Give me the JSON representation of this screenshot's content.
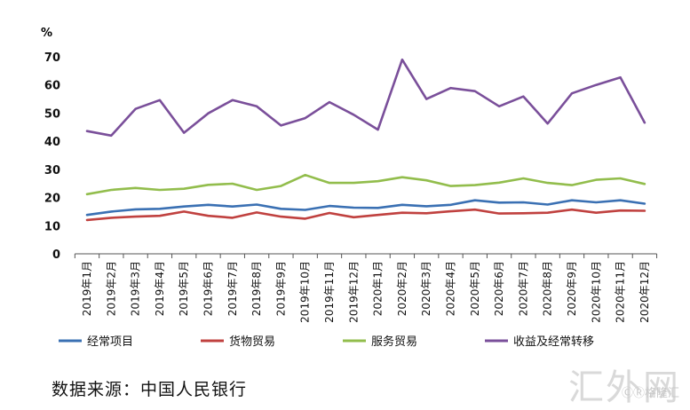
{
  "chart_data": {
    "type": "line",
    "ylabel": "%",
    "ylim": [
      0,
      70
    ],
    "yticks": [
      0,
      10,
      20,
      30,
      40,
      50,
      60,
      70
    ],
    "categories": [
      "2019年1月",
      "2019年2月",
      "2019年3月",
      "2019年4月",
      "2019年5月",
      "2019年6月",
      "2019年7月",
      "2019年8月",
      "2019年9月",
      "2019年10月",
      "2019年11月",
      "2019年12月",
      "2020年1月",
      "2020年2月",
      "2020年3月",
      "2020年4月",
      "2020年5月",
      "2020年6月",
      "2020年7月",
      "2020年8月",
      "2020年9月",
      "2020年10月",
      "2020年11月",
      "2020年12月"
    ],
    "series": [
      {
        "name": "经常项目",
        "color": "#3a70b3",
        "values": [
          13.8,
          15.0,
          15.8,
          16.0,
          16.8,
          17.4,
          16.8,
          17.5,
          16.0,
          15.6,
          17.0,
          16.4,
          16.3,
          17.4,
          16.9,
          17.4,
          19.0,
          18.2,
          18.3,
          17.5,
          19.0,
          18.3,
          19.0,
          17.8
        ]
      },
      {
        "name": "货物贸易",
        "color": "#c0413f",
        "values": [
          12.0,
          12.8,
          13.2,
          13.5,
          15.0,
          13.5,
          12.8,
          14.7,
          13.2,
          12.5,
          14.5,
          13.0,
          13.8,
          14.6,
          14.4,
          15.1,
          15.7,
          14.3,
          14.4,
          14.6,
          15.7,
          14.6,
          15.4,
          15.3
        ]
      },
      {
        "name": "服务贸易",
        "color": "#92bd4c",
        "values": [
          21.2,
          22.7,
          23.4,
          22.7,
          23.1,
          24.5,
          24.9,
          22.7,
          24.1,
          28.0,
          25.2,
          25.2,
          25.8,
          27.2,
          26.1,
          24.1,
          24.4,
          25.3,
          26.8,
          25.2,
          24.4,
          26.3,
          26.8,
          24.8
        ]
      },
      {
        "name": "收益及经常转移",
        "color": "#7a4f9a",
        "values": [
          43.6,
          42.0,
          51.5,
          54.6,
          43.0,
          49.9,
          54.6,
          52.4,
          45.6,
          48.2,
          53.9,
          49.4,
          44.1,
          69.0,
          55.0,
          58.9,
          57.8,
          52.4,
          55.9,
          46.3,
          57.0,
          60.0,
          62.7,
          46.6
        ]
      }
    ]
  },
  "source_text": "数据来源：中国人民银行",
  "watermark": {
    "main": "汇外网",
    "sub": "ⒸⓇ格隆汇"
  }
}
